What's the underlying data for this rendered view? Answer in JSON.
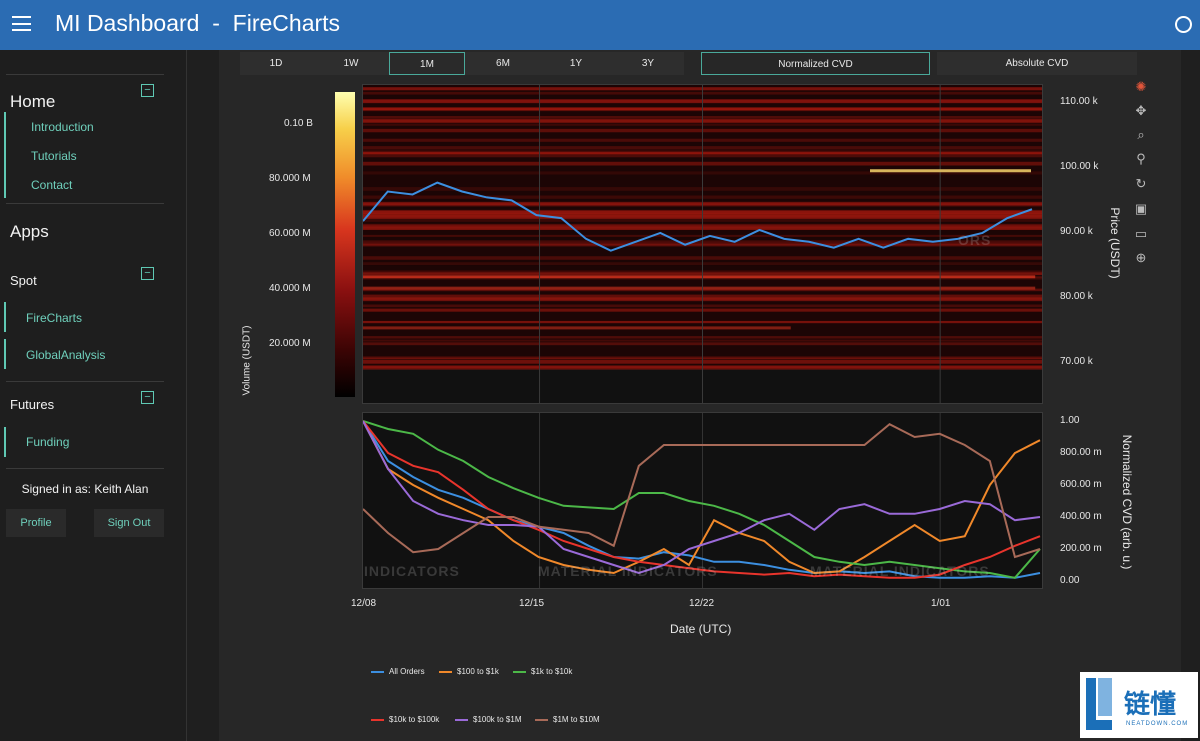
{
  "header": {
    "title": "MI Dashboard  -  FireCharts"
  },
  "sidebar": {
    "home_heading": "Home",
    "home_links": [
      "Introduction",
      "Tutorials",
      "Contact"
    ],
    "apps_heading": "Apps",
    "spot_heading": "Spot",
    "spot_links": [
      "FireCharts",
      "GlobalAnalysis"
    ],
    "futures_heading": "Futures",
    "futures_links": [
      "Funding"
    ],
    "signed_in": "Signed in as: Keith Alan",
    "profile_label": "Profile",
    "signout_label": "Sign Out",
    "collapse_symbol": "−"
  },
  "toolbar": {
    "ranges": [
      "1D",
      "1W",
      "1M",
      "6M",
      "1Y",
      "3Y"
    ],
    "active_range": "1M",
    "cvd_modes": [
      "Normalized CVD",
      "Absolute CVD"
    ],
    "active_cvd_mode": "Normalized CVD"
  },
  "modebar": {
    "icons": [
      "plotly-logo-icon",
      "pan-icon",
      "zoom-icon",
      "zoom-in-out-icon",
      "reset-axes-icon",
      "download-icon",
      "hover-compare-icon",
      "spike-lines-icon"
    ]
  },
  "colors": {
    "accent": "#5fc9b4",
    "header_bg": "#2b6cb3",
    "price_line": "#3c8fe0"
  },
  "watermark": {
    "text_left": "INDICATORS",
    "text_mid": "MATERIAL INDICATORS",
    "text_right": "MATERIAL INDICATORS",
    "text_top": "ORS"
  },
  "chart_data": [
    {
      "type": "heatmap",
      "colorbar_title": "Volume (USDT)",
      "colorbar_ticks": [
        "0.10 B",
        "80.000 M",
        "60.000 M",
        "40.000 M",
        "20.000 M"
      ],
      "ylabel": "Price (USDT)",
      "yticks": [
        "110.00 k",
        "100.00 k",
        "90.00 k",
        "80.00 k",
        "70.00 k"
      ],
      "ylim": [
        66000,
        114000
      ],
      "price_series": {
        "name": "Price",
        "x": [
          "2024-12-08",
          "2024-12-09",
          "2024-12-10",
          "2024-12-11",
          "2024-12-12",
          "2024-12-13",
          "2024-12-14",
          "2024-12-15",
          "2024-12-16",
          "2024-12-17",
          "2024-12-18",
          "2024-12-19",
          "2024-12-20",
          "2024-12-21",
          "2024-12-22",
          "2024-12-23",
          "2024-12-24",
          "2024-12-25",
          "2024-12-26",
          "2024-12-27",
          "2024-12-28",
          "2024-12-29",
          "2024-12-30",
          "2024-12-31",
          "2025-01-01",
          "2025-01-02",
          "2025-01-03",
          "2025-01-04"
        ],
        "y": [
          91000,
          96000,
          95500,
          97500,
          96000,
          95000,
          94500,
          92000,
          91500,
          88000,
          86000,
          87500,
          89000,
          87000,
          88500,
          87500,
          89500,
          88000,
          87500,
          86500,
          88000,
          86500,
          88000,
          87500,
          88000,
          89000,
          91500,
          93000
        ]
      },
      "bright_level": 99500
    },
    {
      "type": "line",
      "xlabel": "Date (UTC)",
      "ylabel": "Normalized CVD (arb. u.)",
      "xticks": [
        "12/08",
        "12/15",
        "12/22",
        "1/01"
      ],
      "yticks": [
        "1.00",
        "800.00 m",
        "600.00 m",
        "400.00 m",
        "200.00 m",
        "0.00"
      ],
      "ylim": [
        0,
        1
      ],
      "x_days": [
        0,
        1,
        2,
        3,
        4,
        5,
        6,
        7,
        8,
        9,
        10,
        11,
        12,
        13,
        14,
        15,
        16,
        17,
        18,
        19,
        20,
        21,
        22,
        23,
        24,
        25,
        26,
        27
      ],
      "series": [
        {
          "name": "All Orders",
          "color": "#3c8fe0",
          "values": [
            1.0,
            0.75,
            0.65,
            0.57,
            0.52,
            0.45,
            0.38,
            0.34,
            0.3,
            0.22,
            0.15,
            0.14,
            0.18,
            0.16,
            0.12,
            0.12,
            0.1,
            0.07,
            0.05,
            0.06,
            0.05,
            0.06,
            0.03,
            0.02,
            0.02,
            0.03,
            0.02,
            0.05
          ]
        },
        {
          "name": "$100 to $1k",
          "color": "#f0882a",
          "values": [
            1.0,
            0.7,
            0.6,
            0.52,
            0.45,
            0.38,
            0.25,
            0.15,
            0.1,
            0.07,
            0.05,
            0.12,
            0.2,
            0.1,
            0.38,
            0.3,
            0.25,
            0.12,
            0.05,
            0.06,
            0.15,
            0.25,
            0.35,
            0.25,
            0.28,
            0.6,
            0.8,
            0.88
          ]
        },
        {
          "name": "$1k to $10k",
          "color": "#4cb848",
          "values": [
            1.0,
            0.95,
            0.92,
            0.82,
            0.75,
            0.65,
            0.58,
            0.52,
            0.47,
            0.46,
            0.45,
            0.55,
            0.55,
            0.5,
            0.47,
            0.42,
            0.35,
            0.25,
            0.15,
            0.12,
            0.1,
            0.12,
            0.1,
            0.08,
            0.06,
            0.05,
            0.02,
            0.2
          ]
        },
        {
          "name": "$10k to $100k",
          "color": "#e8342c",
          "values": [
            1.0,
            0.8,
            0.72,
            0.68,
            0.57,
            0.45,
            0.38,
            0.32,
            0.25,
            0.2,
            0.15,
            0.12,
            0.1,
            0.08,
            0.06,
            0.05,
            0.04,
            0.05,
            0.03,
            0.04,
            0.03,
            0.02,
            0.02,
            0.04,
            0.1,
            0.15,
            0.22,
            0.28
          ]
        },
        {
          "name": "$100k to $1M",
          "color": "#9a6ad8",
          "values": [
            1.0,
            0.7,
            0.5,
            0.42,
            0.38,
            0.35,
            0.35,
            0.34,
            0.2,
            0.15,
            0.1,
            0.05,
            0.1,
            0.2,
            0.25,
            0.3,
            0.38,
            0.42,
            0.32,
            0.45,
            0.48,
            0.42,
            0.42,
            0.45,
            0.5,
            0.48,
            0.38,
            0.4
          ]
        },
        {
          "name": "$1M to $10M",
          "color": "#a86a58",
          "values": [
            0.45,
            0.3,
            0.18,
            0.2,
            0.3,
            0.4,
            0.4,
            0.34,
            0.32,
            0.3,
            0.22,
            0.72,
            0.85,
            0.85,
            0.85,
            0.85,
            0.85,
            0.85,
            0.85,
            0.85,
            0.85,
            0.98,
            0.9,
            0.92,
            0.85,
            0.75,
            0.15,
            0.2
          ]
        }
      ]
    }
  ]
}
